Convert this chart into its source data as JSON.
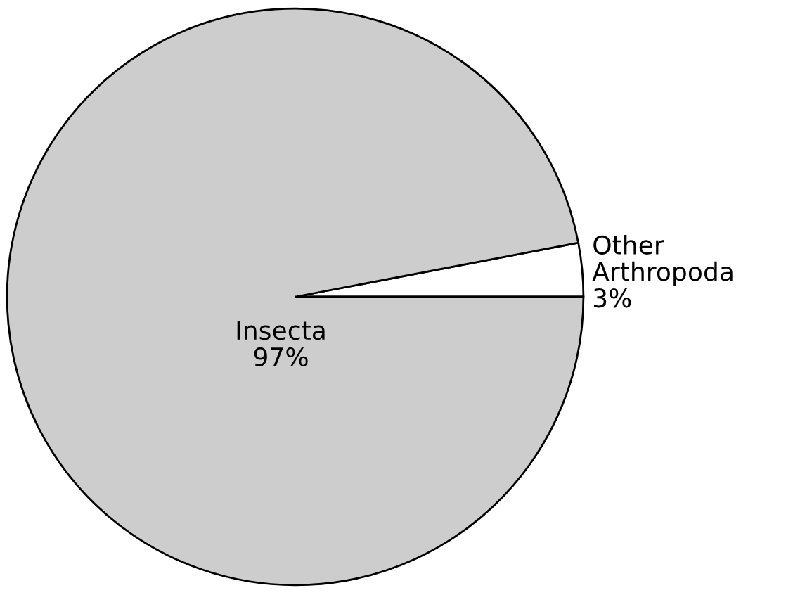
{
  "chart_data": {
    "type": "pie",
    "categories": [
      "Other Arthropoda",
      "Insecta"
    ],
    "values": [
      3,
      97
    ],
    "colors": [
      "#ffffff",
      "#cdcdcd"
    ],
    "value_labels": [
      "3%",
      "97%"
    ]
  }
}
